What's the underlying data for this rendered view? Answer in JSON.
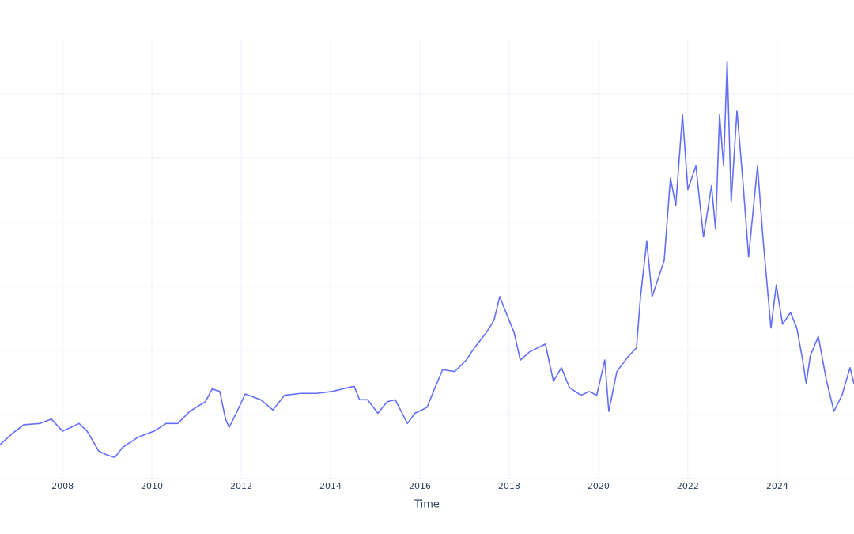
{
  "chart_data": {
    "type": "line",
    "x_label": "Time",
    "color": "#636efa",
    "grid": true,
    "x": [
      2006.6,
      2006.87,
      2007.13,
      2007.49,
      2007.75,
      2008.0,
      2008.19,
      2008.37,
      2008.55,
      2008.81,
      2008.99,
      2009.17,
      2009.35,
      2009.7,
      2010.05,
      2010.32,
      2010.58,
      2010.85,
      2011.2,
      2011.35,
      2011.52,
      2011.65,
      2011.73,
      2011.91,
      2012.09,
      2012.44,
      2012.71,
      2012.97,
      2013.33,
      2013.68,
      2014.04,
      2014.39,
      2014.53,
      2014.65,
      2014.83,
      2015.06,
      2015.27,
      2015.45,
      2015.72,
      2015.89,
      2016.16,
      2016.34,
      2016.51,
      2016.78,
      2017.04,
      2017.22,
      2017.49,
      2017.66,
      2017.79,
      2017.93,
      2018.11,
      2018.25,
      2018.46,
      2018.81,
      2018.99,
      2019.17,
      2019.35,
      2019.61,
      2019.79,
      2019.96,
      2020.14,
      2020.23,
      2020.41,
      2020.67,
      2020.85,
      2020.94,
      2021.08,
      2021.2,
      2021.47,
      2021.61,
      2021.73,
      2021.88,
      2022.0,
      2022.18,
      2022.35,
      2022.53,
      2022.62,
      2022.71,
      2022.8,
      2022.88,
      2022.97,
      2023.1,
      2023.24,
      2023.36,
      2023.56,
      2023.68,
      2023.86,
      2023.98,
      2024.12,
      2024.3,
      2024.44,
      2024.57,
      2024.65,
      2024.74,
      2024.92,
      2025.1,
      2025.27,
      2025.45,
      2025.63,
      2025.72
    ],
    "values": [
      0.53,
      0.7,
      0.84,
      0.86,
      0.93,
      0.74,
      0.8,
      0.86,
      0.74,
      0.43,
      0.37,
      0.33,
      0.49,
      0.65,
      0.74,
      0.86,
      0.86,
      1.05,
      1.2,
      1.4,
      1.36,
      0.93,
      0.8,
      1.05,
      1.32,
      1.23,
      1.07,
      1.3,
      1.33,
      1.33,
      1.36,
      1.42,
      1.44,
      1.23,
      1.23,
      1.02,
      1.2,
      1.23,
      0.86,
      1.02,
      1.11,
      1.42,
      1.7,
      1.67,
      1.85,
      2.04,
      2.28,
      2.47,
      2.84,
      2.59,
      2.28,
      1.85,
      1.98,
      2.1,
      1.52,
      1.73,
      1.42,
      1.3,
      1.36,
      1.3,
      1.85,
      1.05,
      1.67,
      1.91,
      2.04,
      2.84,
      3.7,
      2.84,
      3.4,
      4.69,
      4.26,
      5.68,
      4.51,
      4.88,
      3.77,
      4.57,
      3.89,
      5.68,
      4.88,
      6.51,
      4.32,
      5.74,
      4.57,
      3.46,
      4.88,
      3.77,
      2.35,
      3.02,
      2.41,
      2.59,
      2.35,
      1.85,
      1.48,
      1.91,
      2.22,
      1.54,
      1.05,
      1.3,
      1.73,
      1.48
    ],
    "xlim": [
      2006.6,
      2025.72
    ],
    "xticks": [
      2008,
      2010,
      2012,
      2014,
      2016,
      2018,
      2020,
      2022,
      2024
    ],
    "ylim": [
      0,
      6.85
    ],
    "ygrid": [
      0,
      1,
      2,
      3,
      4,
      5,
      6
    ]
  }
}
